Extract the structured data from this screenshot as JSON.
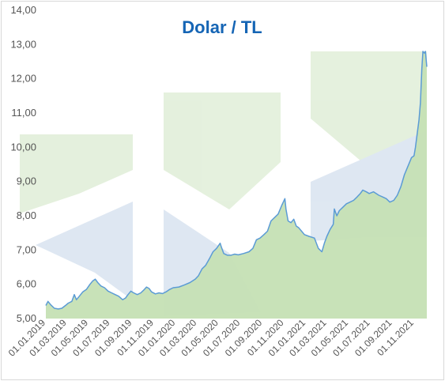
{
  "chart_data": {
    "type": "area",
    "title": "Dolar / TL",
    "xlabel": "",
    "ylabel": "",
    "ylim": [
      5.0,
      14.0
    ],
    "y_ticks": [
      "5,00",
      "6,00",
      "7,00",
      "8,00",
      "9,00",
      "10,00",
      "11,00",
      "12,00",
      "13,00",
      "14,00"
    ],
    "y_tick_values": [
      5,
      6,
      7,
      8,
      9,
      10,
      11,
      12,
      13,
      14
    ],
    "x_range": [
      "2019-01-01",
      "2021-12-07"
    ],
    "x_ticks": [
      "01.01.2019",
      "01.03.2019",
      "01.05.2019",
      "01.07.2019",
      "01.09.2019",
      "01.11.2019",
      "01.01.2020",
      "01.03.2020",
      "01.05.2020",
      "01.07.2020",
      "01.09.2020",
      "01.11.2020",
      "01.01.2021",
      "01.03.2021",
      "01.05.2021",
      "01.07.2021",
      "01.09.2021",
      "01.11.2021"
    ],
    "x_tick_dates": [
      "2019-01-01",
      "2019-03-01",
      "2019-05-01",
      "2019-07-01",
      "2019-09-01",
      "2019-11-01",
      "2020-01-01",
      "2020-03-01",
      "2020-05-01",
      "2020-07-01",
      "2020-09-01",
      "2020-11-01",
      "2021-01-01",
      "2021-03-01",
      "2021-05-01",
      "2021-07-01",
      "2021-09-01",
      "2021-11-01"
    ],
    "grid": false,
    "colors": {
      "line": "#5b9bd5",
      "fill": "#c5e0b4",
      "title": "#1565b5",
      "axis_text": "#555555",
      "border": "#d9d9d9",
      "watermark_green": "#e2efda",
      "watermark_blue": "#dbe5f1"
    },
    "series": [
      {
        "x": [
          "2019-01-01",
          "2019-01-07",
          "2019-01-15",
          "2019-01-25",
          "2019-02-05",
          "2019-02-15",
          "2019-02-25",
          "2019-03-05",
          "2019-03-15",
          "2019-03-22",
          "2019-03-28",
          "2019-04-05",
          "2019-04-15",
          "2019-04-25",
          "2019-05-05",
          "2019-05-13",
          "2019-05-20",
          "2019-05-27",
          "2019-06-05",
          "2019-06-15",
          "2019-06-25",
          "2019-07-05",
          "2019-07-15",
          "2019-07-25",
          "2019-08-05",
          "2019-08-13",
          "2019-08-20",
          "2019-08-28",
          "2019-09-05",
          "2019-09-15",
          "2019-09-25",
          "2019-10-05",
          "2019-10-11",
          "2019-10-18",
          "2019-10-25",
          "2019-11-05",
          "2019-11-15",
          "2019-11-25",
          "2019-12-05",
          "2019-12-15",
          "2019-12-25",
          "2020-01-10",
          "2020-01-25",
          "2020-02-10",
          "2020-02-25",
          "2020-03-05",
          "2020-03-15",
          "2020-03-25",
          "2020-04-05",
          "2020-04-15",
          "2020-04-25",
          "2020-05-05",
          "2020-05-08",
          "2020-05-15",
          "2020-05-25",
          "2020-06-05",
          "2020-06-15",
          "2020-06-25",
          "2020-07-10",
          "2020-07-25",
          "2020-08-05",
          "2020-08-15",
          "2020-08-25",
          "2020-09-05",
          "2020-09-15",
          "2020-09-25",
          "2020-10-05",
          "2020-10-15",
          "2020-10-25",
          "2020-11-03",
          "2020-11-06",
          "2020-11-12",
          "2020-11-20",
          "2020-11-28",
          "2020-12-05",
          "2020-12-12",
          "2020-12-20",
          "2020-12-28",
          "2021-01-10",
          "2021-01-25",
          "2021-02-05",
          "2021-02-15",
          "2021-02-22",
          "2021-03-01",
          "2021-03-10",
          "2021-03-19",
          "2021-03-22",
          "2021-03-29",
          "2021-04-05",
          "2021-04-15",
          "2021-04-25",
          "2021-05-05",
          "2021-05-15",
          "2021-05-25",
          "2021-06-03",
          "2021-06-10",
          "2021-06-20",
          "2021-06-28",
          "2021-07-10",
          "2021-07-25",
          "2021-08-05",
          "2021-08-15",
          "2021-08-25",
          "2021-09-05",
          "2021-09-15",
          "2021-09-25",
          "2021-10-05",
          "2021-10-15",
          "2021-10-25",
          "2021-11-01",
          "2021-11-05",
          "2021-11-10",
          "2021-11-15",
          "2021-11-19",
          "2021-11-23",
          "2021-11-26",
          "2021-11-30",
          "2021-12-03",
          "2021-12-07"
        ],
        "values": [
          5.38,
          5.5,
          5.4,
          5.3,
          5.28,
          5.3,
          5.38,
          5.45,
          5.5,
          5.7,
          5.55,
          5.65,
          5.78,
          5.85,
          6.0,
          6.1,
          6.15,
          6.05,
          5.95,
          5.9,
          5.8,
          5.75,
          5.7,
          5.65,
          5.55,
          5.6,
          5.7,
          5.8,
          5.75,
          5.7,
          5.75,
          5.85,
          5.92,
          5.88,
          5.78,
          5.72,
          5.75,
          5.73,
          5.78,
          5.85,
          5.9,
          5.92,
          5.98,
          6.05,
          6.15,
          6.25,
          6.45,
          6.55,
          6.75,
          6.95,
          7.05,
          7.2,
          7.1,
          6.9,
          6.85,
          6.85,
          6.88,
          6.86,
          6.9,
          6.95,
          7.05,
          7.3,
          7.35,
          7.45,
          7.55,
          7.85,
          7.95,
          8.05,
          8.3,
          8.5,
          8.2,
          7.85,
          7.8,
          7.9,
          7.7,
          7.65,
          7.55,
          7.45,
          7.4,
          7.35,
          7.05,
          6.95,
          7.2,
          7.4,
          7.6,
          7.75,
          8.2,
          8.0,
          8.15,
          8.25,
          8.35,
          8.4,
          8.45,
          8.55,
          8.65,
          8.75,
          8.7,
          8.65,
          8.7,
          8.6,
          8.55,
          8.5,
          8.4,
          8.45,
          8.6,
          8.85,
          9.2,
          9.45,
          9.7,
          9.75,
          10.0,
          10.4,
          10.8,
          11.3,
          12.3,
          12.8,
          12.75,
          12.8,
          12.35
        ]
      }
    ]
  }
}
